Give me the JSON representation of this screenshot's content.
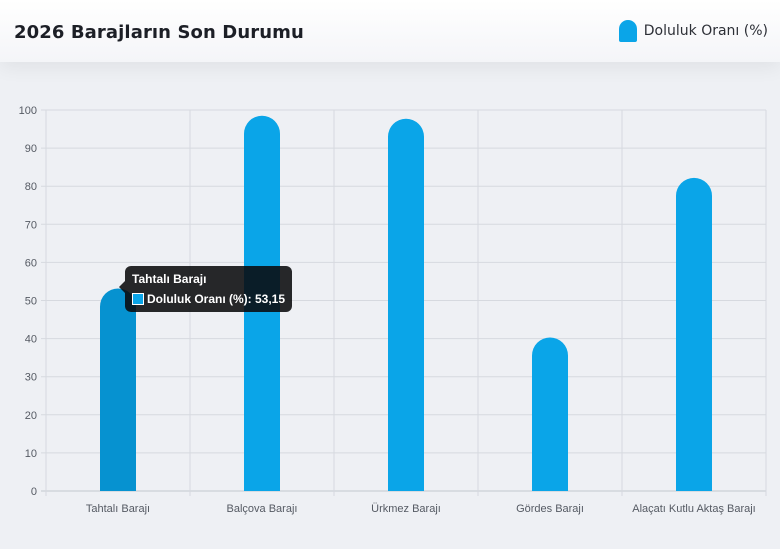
{
  "chart_title": "2026 Barajların Son Durumu",
  "legend": {
    "label": "Doluluk Oranı (%)",
    "position": "top-right"
  },
  "tooltip": {
    "title": "Tahtalı Barajı",
    "label": "Doluluk Oranı (%)",
    "value": "53,15",
    "text": "Doluluk Oranı (%): 53,15"
  },
  "colors": {
    "bar": "#0aa5e8",
    "bar_active": "#0692d0",
    "grid": "#d6d9df",
    "axis_text": "#555a63"
  },
  "chart_data": {
    "type": "bar",
    "categories": [
      "Tahtalı Barajı",
      "Balçova Barajı",
      "Ürkmez Barajı",
      "Gördes Barajı",
      "Alaçatı Kutlu Aktaş Barajı"
    ],
    "series": [
      {
        "name": "Doluluk Oranı (%)",
        "values": [
          53.15,
          98.5,
          97.7,
          40.3,
          82.2
        ]
      }
    ],
    "title": "2026 Barajların Son Durumu",
    "xlabel": "",
    "ylabel": "",
    "ylim": [
      0,
      100
    ],
    "yticks": [
      0,
      10,
      20,
      30,
      40,
      50,
      60,
      70,
      80,
      90,
      100
    ],
    "grid": true,
    "active_index": 0
  }
}
